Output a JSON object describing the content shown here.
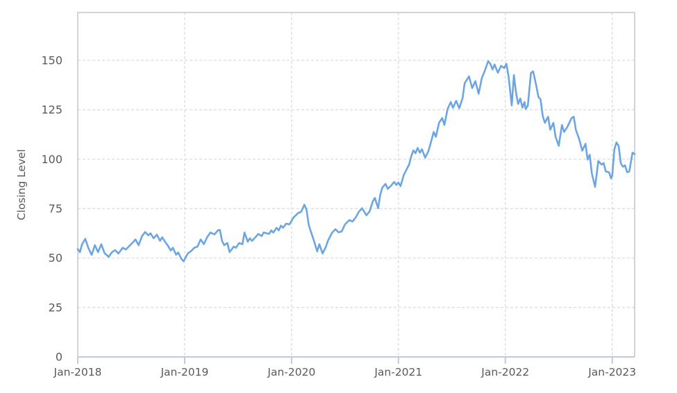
{
  "chart_data": {
    "type": "line",
    "title": "",
    "xlabel": "",
    "ylabel": "Closing Level",
    "x_tick_labels": [
      "Jan-2018",
      "Jan-2019",
      "Jan-2020",
      "Jan-2021",
      "Jan-2022",
      "Jan-2023"
    ],
    "x_tick_years": [
      2018,
      2019,
      2020,
      2021,
      2022,
      2023
    ],
    "y_ticks": [
      0,
      25,
      50,
      75,
      100,
      125,
      150
    ],
    "xlim": [
      2018.0,
      2023.21
    ],
    "ylim": [
      0,
      174.2
    ],
    "grid": "dashed-both-axes",
    "legend": "none",
    "colors": {
      "line": "#6ba6e2",
      "grid": "#dcdcdc",
      "spine": "#d0d3d7",
      "axis": "#c0c9de",
      "text": "#5a5a5c",
      "background": "#ffffff"
    },
    "series": [
      {
        "name": "Closing Level",
        "x": [
          2018.0,
          2018.02,
          2018.04,
          2018.07,
          2018.1,
          2018.13,
          2018.16,
          2018.19,
          2018.22,
          2018.25,
          2018.29,
          2018.32,
          2018.35,
          2018.38,
          2018.42,
          2018.45,
          2018.48,
          2018.51,
          2018.54,
          2018.57,
          2018.6,
          2018.63,
          2018.66,
          2018.68,
          2018.71,
          2018.74,
          2018.77,
          2018.79,
          2018.82,
          2018.84,
          2018.87,
          2018.89,
          2018.92,
          2018.94,
          2018.97,
          2018.99,
          2019.03,
          2019.06,
          2019.09,
          2019.12,
          2019.15,
          2019.18,
          2019.21,
          2019.24,
          2019.28,
          2019.31,
          2019.33,
          2019.35,
          2019.37,
          2019.4,
          2019.42,
          2019.46,
          2019.48,
          2019.51,
          2019.54,
          2019.56,
          2019.59,
          2019.61,
          2019.63,
          2019.66,
          2019.69,
          2019.72,
          2019.74,
          2019.79,
          2019.81,
          2019.83,
          2019.86,
          2019.88,
          2019.9,
          2019.92,
          2019.95,
          2019.98,
          2020.0,
          2020.02,
          2020.04,
          2020.06,
          2020.09,
          2020.12,
          2020.14,
          2020.16,
          2020.18,
          2020.21,
          2020.24,
          2020.26,
          2020.29,
          2020.32,
          2020.34,
          2020.38,
          2020.41,
          2020.44,
          2020.47,
          2020.5,
          2020.54,
          2020.57,
          2020.6,
          2020.63,
          2020.66,
          2020.7,
          2020.73,
          2020.76,
          2020.78,
          2020.81,
          2020.83,
          2020.85,
          2020.88,
          2020.9,
          2020.93,
          2020.96,
          2020.98,
          2021.0,
          2021.02,
          2021.05,
          2021.08,
          2021.1,
          2021.12,
          2021.14,
          2021.16,
          2021.18,
          2021.2,
          2021.22,
          2021.25,
          2021.28,
          2021.3,
          2021.33,
          2021.35,
          2021.38,
          2021.41,
          2021.43,
          2021.46,
          2021.49,
          2021.51,
          2021.54,
          2021.57,
          2021.6,
          2021.62,
          2021.66,
          2021.69,
          2021.72,
          2021.75,
          2021.78,
          2021.81,
          2021.84,
          2021.86,
          2021.88,
          2021.9,
          2021.93,
          2021.96,
          2021.99,
          2022.01,
          2022.03,
          2022.06,
          2022.08,
          2022.1,
          2022.12,
          2022.14,
          2022.16,
          2022.18,
          2022.19,
          2022.21,
          2022.24,
          2022.26,
          2022.29,
          2022.31,
          2022.33,
          2022.35,
          2022.37,
          2022.4,
          2022.42,
          2022.45,
          2022.47,
          2022.5,
          2022.53,
          2022.55,
          2022.58,
          2022.62,
          2022.64,
          2022.66,
          2022.69,
          2022.72,
          2022.75,
          2022.77,
          2022.79,
          2022.81,
          2022.84,
          2022.87,
          2022.9,
          2022.92,
          2022.94,
          2022.97,
          2022.99,
          2023.0,
          2023.02,
          2023.04,
          2023.06,
          2023.08,
          2023.1,
          2023.12,
          2023.14,
          2023.16,
          2023.19,
          2023.21
        ],
        "y": [
          54.5,
          53.0,
          57.0,
          59.7,
          55.0,
          51.6,
          56.5,
          53.0,
          57.0,
          52.5,
          50.6,
          53.0,
          54.0,
          52.3,
          55.2,
          54.3,
          56.0,
          57.6,
          59.4,
          56.5,
          61.0,
          63.2,
          61.5,
          62.5,
          60.0,
          61.8,
          58.7,
          60.5,
          58.0,
          56.5,
          53.8,
          55.2,
          51.7,
          52.8,
          49.5,
          48.4,
          52.4,
          53.5,
          55.2,
          55.8,
          59.4,
          57.0,
          60.5,
          62.9,
          62.0,
          64.0,
          64.2,
          58.7,
          56.5,
          57.6,
          53.0,
          55.8,
          55.2,
          57.6,
          57.0,
          62.9,
          58.3,
          60.0,
          58.7,
          60.4,
          62.2,
          61.1,
          62.9,
          62.2,
          64.0,
          62.9,
          65.3,
          64.0,
          66.4,
          65.3,
          67.4,
          67.0,
          68.8,
          70.6,
          71.6,
          72.7,
          73.4,
          77.0,
          74.5,
          67.0,
          63.5,
          58.7,
          53.4,
          57.0,
          52.3,
          55.5,
          58.7,
          62.9,
          64.6,
          63.0,
          63.5,
          67.0,
          69.2,
          68.5,
          70.5,
          73.4,
          75.2,
          71.6,
          73.5,
          78.7,
          80.4,
          75.2,
          82.0,
          85.7,
          87.5,
          85.0,
          86.5,
          88.5,
          87.0,
          88.2,
          86.4,
          92.0,
          95.2,
          97.3,
          101.5,
          104.5,
          103.0,
          105.7,
          103.3,
          105.0,
          100.8,
          104.0,
          107.8,
          113.8,
          111.3,
          118.4,
          120.8,
          117.3,
          125.4,
          128.9,
          126.0,
          129.5,
          125.8,
          131.0,
          138.4,
          141.9,
          136.0,
          139.5,
          133.1,
          141.0,
          145.0,
          149.6,
          148.2,
          145.4,
          147.9,
          143.7,
          147.2,
          146.1,
          148.2,
          141.9,
          127.2,
          142.6,
          133.8,
          127.9,
          130.7,
          126.1,
          128.9,
          125.4,
          127.0,
          143.7,
          144.4,
          137.0,
          131.4,
          130.3,
          121.9,
          118.4,
          121.5,
          114.9,
          118.4,
          111.3,
          106.8,
          117.3,
          113.8,
          116.3,
          120.8,
          121.5,
          114.9,
          110.3,
          104.3,
          107.8,
          99.8,
          102.2,
          92.7,
          86.0,
          99.1,
          97.3,
          98.0,
          93.8,
          93.4,
          90.3,
          91.7,
          105.0,
          108.5,
          106.8,
          98.0,
          96.2,
          96.9,
          93.4,
          93.8,
          103.3,
          102.6
        ]
      }
    ]
  }
}
